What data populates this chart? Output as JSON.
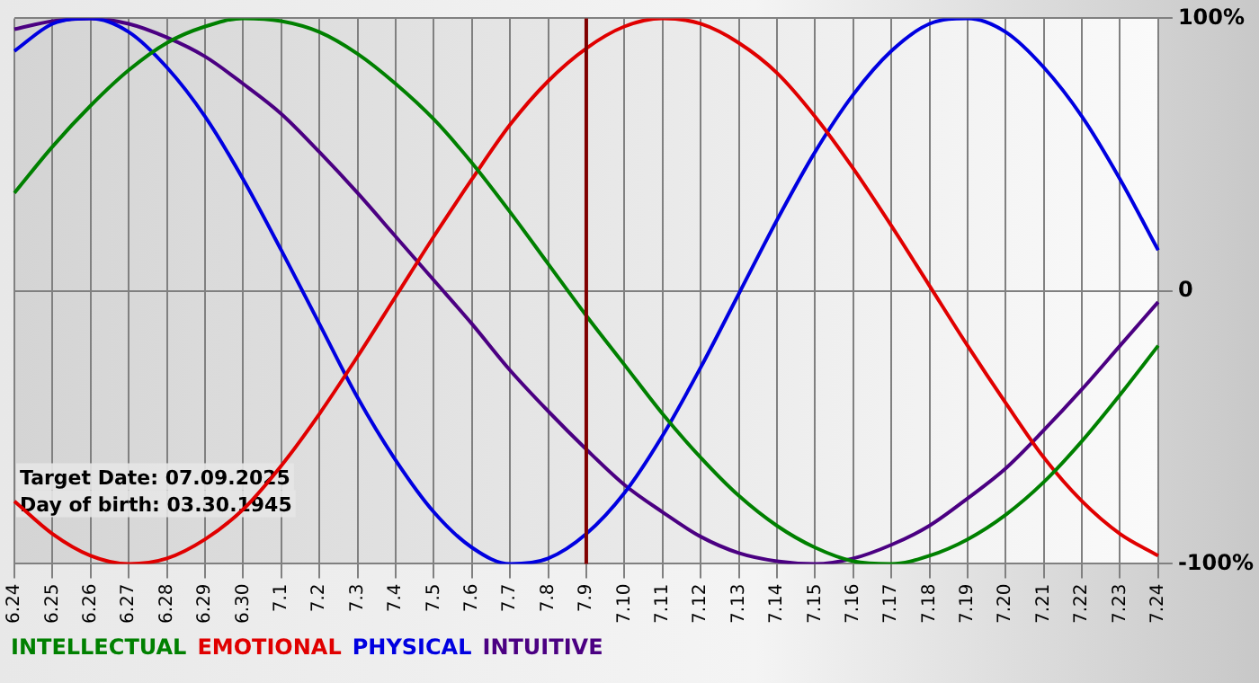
{
  "chart_data": {
    "type": "line",
    "categories": [
      "6.24",
      "6.25",
      "6.26",
      "6.27",
      "6.28",
      "6.29",
      "6.30",
      "7.1",
      "7.2",
      "7.3",
      "7.4",
      "7.5",
      "7.6",
      "7.7",
      "7.8",
      "7.9",
      "7.10",
      "7.11",
      "7.12",
      "7.13",
      "7.14",
      "7.15",
      "7.16",
      "7.17",
      "7.18",
      "7.19",
      "7.20",
      "7.21",
      "7.22",
      "7.23",
      "7.24"
    ],
    "series": [
      {
        "name": "INTELLECTUAL",
        "color": "#008000",
        "values": [
          0.36,
          0.53,
          0.68,
          0.81,
          0.91,
          0.97,
          1.0,
          0.99,
          0.95,
          0.87,
          0.76,
          0.63,
          0.47,
          0.29,
          0.1,
          -0.09,
          -0.27,
          -0.45,
          -0.61,
          -0.75,
          -0.86,
          -0.94,
          -0.99,
          -1.0,
          -0.97,
          -0.91,
          -0.82,
          -0.7,
          -0.55,
          -0.38,
          -0.2
        ]
      },
      {
        "name": "EMOTIONAL",
        "color": "#e00000",
        "values": [
          -0.77,
          -0.89,
          -0.97,
          -1.0,
          -0.98,
          -0.91,
          -0.8,
          -0.64,
          -0.45,
          -0.24,
          -0.02,
          0.2,
          0.41,
          0.61,
          0.77,
          0.89,
          0.97,
          1.0,
          0.98,
          0.91,
          0.8,
          0.64,
          0.45,
          0.24,
          0.02,
          -0.2,
          -0.41,
          -0.61,
          -0.77,
          -0.89,
          -0.97
        ]
      },
      {
        "name": "PHYSICAL",
        "color": "#0000e0",
        "values": [
          0.88,
          0.98,
          1.0,
          0.95,
          0.82,
          0.64,
          0.41,
          0.15,
          -0.12,
          -0.39,
          -0.62,
          -0.81,
          -0.94,
          -1.0,
          -0.98,
          -0.89,
          -0.74,
          -0.53,
          -0.28,
          -0.01,
          0.26,
          0.51,
          0.72,
          0.88,
          0.98,
          1.0,
          0.95,
          0.82,
          0.64,
          0.41,
          0.15
        ]
      },
      {
        "name": "INTUITIVE",
        "color": "#4b0082",
        "values": [
          0.96,
          0.99,
          1.0,
          0.98,
          0.93,
          0.86,
          0.76,
          0.65,
          0.51,
          0.36,
          0.2,
          0.04,
          -0.12,
          -0.29,
          -0.44,
          -0.58,
          -0.71,
          -0.81,
          -0.9,
          -0.96,
          -0.99,
          -1.0,
          -0.98,
          -0.93,
          -0.86,
          -0.76,
          -0.65,
          -0.51,
          -0.36,
          -0.2,
          -0.04
        ]
      }
    ],
    "ylim": [
      -1,
      1
    ],
    "yticks": [
      {
        "value": 1,
        "label": "100%"
      },
      {
        "value": 0,
        "label": "0"
      },
      {
        "value": -1,
        "label": "-100%"
      }
    ],
    "ref_lines": [
      {
        "axis": "x",
        "value": "7.9",
        "color": "#800000"
      }
    ],
    "annotations": [
      "Target Date: 07.09.2025",
      "Day of birth: 03.30.1945"
    ],
    "grid": true,
    "legend": "bottom left",
    "marker": "none",
    "line_style": "solid"
  }
}
